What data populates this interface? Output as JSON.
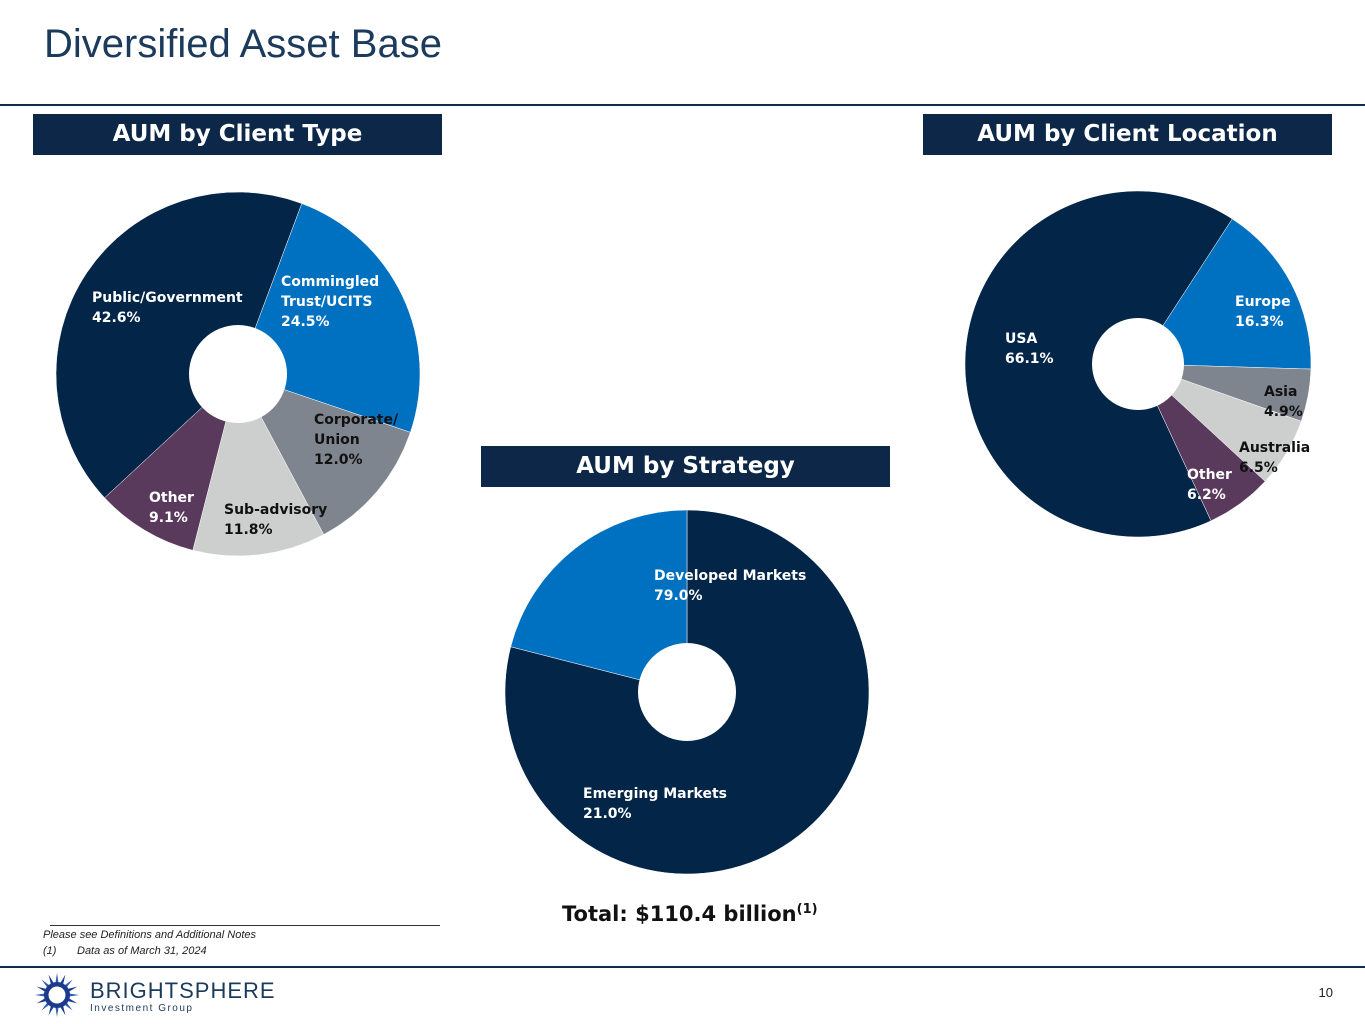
{
  "page": {
    "title": "Diversified Asset Base",
    "total_label": "Total: $110.4 billion",
    "total_footnote": "(1)",
    "notes": [
      "Please see Definitions and Additional Notes",
      "(1)",
      "Data as of March 31, 2024"
    ],
    "page_number": "10",
    "logo": {
      "name": "BRIGHTSPHERE",
      "sub": "Investment Group"
    }
  },
  "chart_data": [
    {
      "type": "pie",
      "title": "AUM by Client Type",
      "donut": true,
      "slices": [
        {
          "label": [
            "Commingled",
            "Trust/UCITS"
          ],
          "value": 24.5,
          "value_label": "24.5%",
          "color": "#0070c0",
          "text_color": "#ffffff"
        },
        {
          "label": [
            "Corporate/",
            "Union"
          ],
          "value": 12.0,
          "value_label": "12.0%",
          "color": "#7f858e",
          "text_color": "#111111"
        },
        {
          "label": [
            "Sub-advisory"
          ],
          "value": 11.8,
          "value_label": "11.8%",
          "color": "#cdcfce",
          "text_color": "#111111"
        },
        {
          "label": [
            "Other"
          ],
          "value": 9.1,
          "value_label": "9.1%",
          "color": "#5a3a5c",
          "text_color": "#ffffff"
        },
        {
          "label": [
            "Public/Government"
          ],
          "value": 42.6,
          "value_label": "42.6%",
          "color": "#022548",
          "text_color": "#ffffff"
        }
      ]
    },
    {
      "type": "pie",
      "title": "AUM by Client Location",
      "donut": true,
      "slices": [
        {
          "label": [
            "Europe"
          ],
          "value": 16.3,
          "value_label": "16.3%",
          "color": "#0070c0",
          "text_color": "#ffffff"
        },
        {
          "label": [
            "Asia"
          ],
          "value": 4.9,
          "value_label": "4.9%",
          "color": "#7f858e",
          "text_color": "#111111"
        },
        {
          "label": [
            "Australia"
          ],
          "value": 6.5,
          "value_label": "6.5%",
          "color": "#cdcfce",
          "text_color": "#111111"
        },
        {
          "label": [
            "Other"
          ],
          "value": 6.2,
          "value_label": "6.2%",
          "color": "#5a3a5c",
          "text_color": "#ffffff"
        },
        {
          "label": [
            "USA"
          ],
          "value": 66.1,
          "value_label": "66.1%",
          "color": "#022548",
          "text_color": "#ffffff"
        }
      ]
    },
    {
      "type": "pie",
      "title": "AUM by Strategy",
      "donut": true,
      "slices": [
        {
          "label": [
            "Developed Markets"
          ],
          "value": 79.0,
          "value_label": "79.0%",
          "color": "#022548",
          "text_color": "#ffffff"
        },
        {
          "label": [
            "Emerging Markets"
          ],
          "value": 21.0,
          "value_label": "21.0%",
          "color": "#0070c0",
          "text_color": "#ffffff"
        }
      ]
    }
  ]
}
